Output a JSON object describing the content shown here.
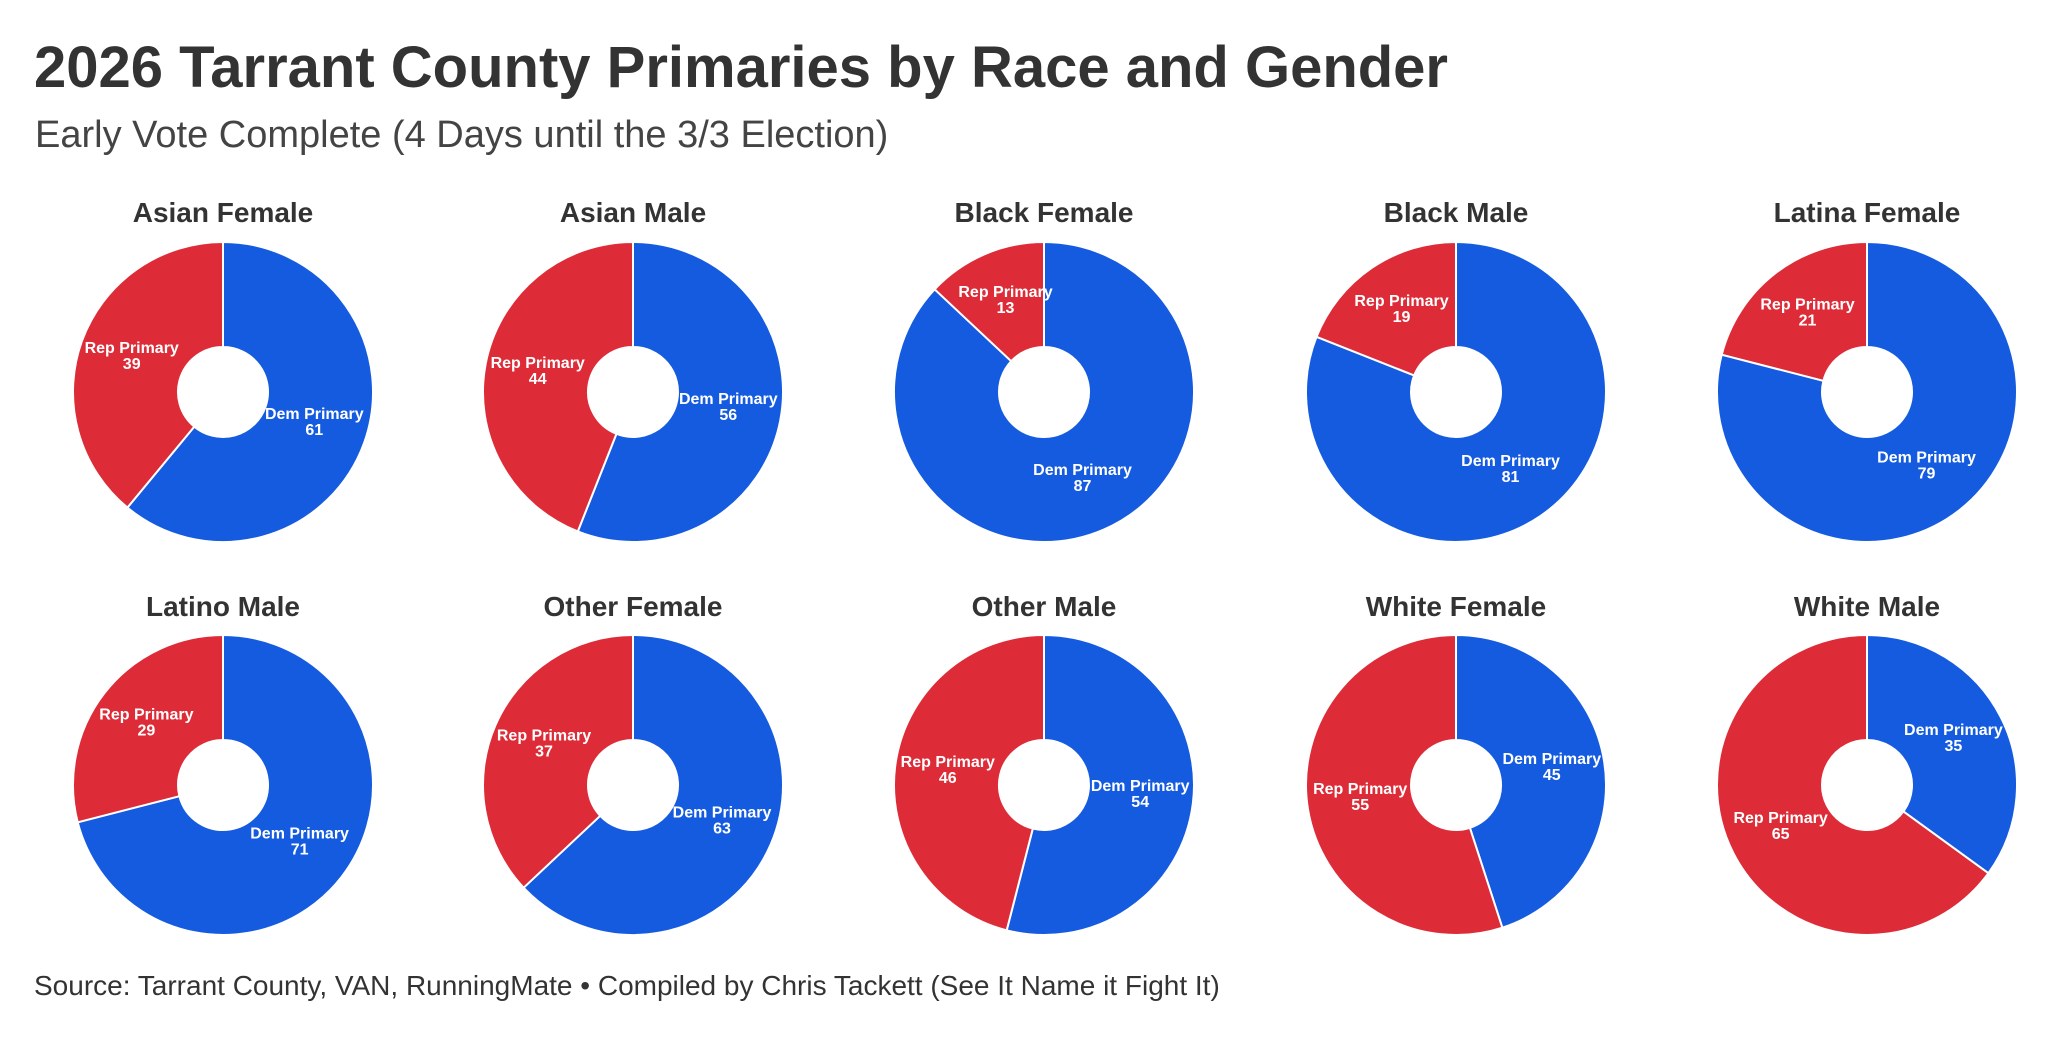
{
  "title": "2026 Tarrant County Primaries by Race and Gender",
  "subtitle": "Early Vote Complete (4 Days until the 3/3 Election)",
  "source": "Source: Tarrant County, VAN, RunningMate • Compiled by Chris Tackett (See It Name it Fight It)",
  "colors": {
    "dem": "#155be0",
    "rep": "#dd2c37"
  },
  "chart_data": [
    {
      "type": "pie",
      "title": "Asian Female",
      "slices": [
        {
          "label": "Dem Primary",
          "value": 61
        },
        {
          "label": "Rep Primary",
          "value": 39
        }
      ]
    },
    {
      "type": "pie",
      "title": "Asian Male",
      "slices": [
        {
          "label": "Dem Primary",
          "value": 56
        },
        {
          "label": "Rep Primary",
          "value": 44
        }
      ]
    },
    {
      "type": "pie",
      "title": "Black Female",
      "slices": [
        {
          "label": "Dem Primary",
          "value": 87
        },
        {
          "label": "Rep Primary",
          "value": 13
        }
      ]
    },
    {
      "type": "pie",
      "title": "Black Male",
      "slices": [
        {
          "label": "Dem Primary",
          "value": 81
        },
        {
          "label": "Rep Primary",
          "value": 19
        }
      ]
    },
    {
      "type": "pie",
      "title": "Latina Female",
      "slices": [
        {
          "label": "Dem Primary",
          "value": 79
        },
        {
          "label": "Rep Primary",
          "value": 21
        }
      ]
    },
    {
      "type": "pie",
      "title": "Latino Male",
      "slices": [
        {
          "label": "Dem Primary",
          "value": 71
        },
        {
          "label": "Rep Primary",
          "value": 29
        }
      ]
    },
    {
      "type": "pie",
      "title": "Other Female",
      "slices": [
        {
          "label": "Dem Primary",
          "value": 63
        },
        {
          "label": "Rep Primary",
          "value": 37
        }
      ]
    },
    {
      "type": "pie",
      "title": "Other Male",
      "slices": [
        {
          "label": "Dem Primary",
          "value": 54
        },
        {
          "label": "Rep Primary",
          "value": 46
        }
      ]
    },
    {
      "type": "pie",
      "title": "White Female",
      "slices": [
        {
          "label": "Dem Primary",
          "value": 45
        },
        {
          "label": "Rep Primary",
          "value": 55
        }
      ]
    },
    {
      "type": "pie",
      "title": "White Male",
      "slices": [
        {
          "label": "Dem Primary",
          "value": 35
        },
        {
          "label": "Rep Primary",
          "value": 65
        }
      ]
    }
  ]
}
